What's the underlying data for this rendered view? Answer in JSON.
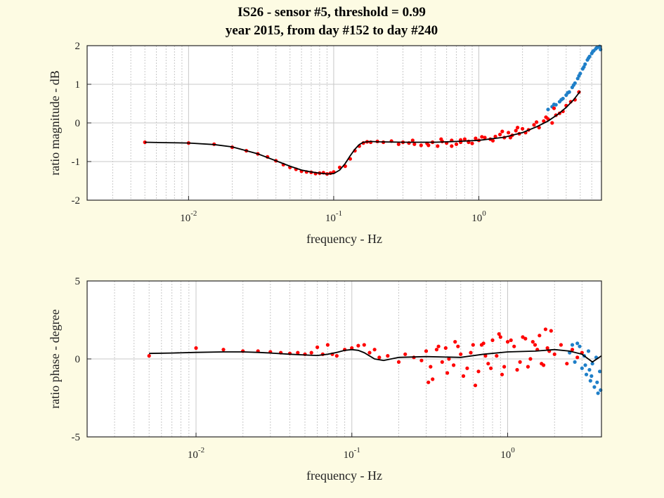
{
  "figure": {
    "title_line1": "IS26 - sensor #5, threshold = 0.99",
    "title_line2": "year 2015, from day #152 to day #240"
  },
  "colors": {
    "background": "#fdfbe3",
    "plot_area": "#ffffff",
    "red_series": "#ff0000",
    "blue_series": "#1f7fc8",
    "fit_line": "#000000",
    "grid": "#c8c8c8"
  },
  "chart_data": [
    {
      "type": "scatter",
      "xscale": "log",
      "xlim": [
        0.002,
        7
      ],
      "ylim": [
        -2,
        2
      ],
      "xlabel": "frequency - Hz",
      "ylabel": "ratio magnitude - dB",
      "xticks": [
        0.01,
        0.1,
        1
      ],
      "xtick_labels": [
        {
          "base": "10",
          "exp": "-2"
        },
        {
          "base": "10",
          "exp": "-1"
        },
        {
          "base": "10",
          "exp": "0"
        }
      ],
      "yticks": [
        -2,
        -1,
        0,
        1,
        2
      ],
      "ytick_labels": [
        "-2",
        "-1",
        "0",
        "1",
        "2"
      ],
      "grid": true,
      "series": [
        {
          "color_key": "blue_series",
          "kind": "points",
          "x": [
            3.0,
            3.2,
            3.4,
            3.6,
            3.8,
            4.0,
            4.2,
            4.4,
            4.6,
            4.8,
            5.0,
            5.2,
            5.4,
            5.6,
            5.8,
            6.0,
            6.2,
            6.4,
            6.6,
            6.8,
            3.3,
            3.7,
            4.1,
            4.5,
            4.9,
            5.3,
            5.7,
            6.1,
            6.5,
            6.9
          ],
          "y": [
            0.35,
            0.42,
            0.47,
            0.55,
            0.63,
            0.72,
            0.8,
            0.92,
            1.03,
            1.15,
            1.28,
            1.4,
            1.52,
            1.63,
            1.72,
            1.8,
            1.87,
            1.92,
            1.96,
            1.98,
            0.48,
            0.6,
            0.78,
            0.98,
            1.22,
            1.45,
            1.68,
            1.85,
            1.95,
            1.9
          ]
        },
        {
          "color_key": "red_series",
          "kind": "points",
          "x": [
            0.005,
            0.01,
            0.015,
            0.02,
            0.025,
            0.03,
            0.035,
            0.04,
            0.045,
            0.05,
            0.055,
            0.06,
            0.065,
            0.07,
            0.075,
            0.08,
            0.085,
            0.09,
            0.095,
            0.1,
            0.11,
            0.12,
            0.13,
            0.14,
            0.15,
            0.16,
            0.17,
            0.18,
            0.2,
            0.22,
            0.25,
            0.28,
            0.3,
            0.33,
            0.36,
            0.4,
            0.44,
            0.48,
            0.52,
            0.56,
            0.6,
            0.65,
            0.7,
            0.75,
            0.8,
            0.85,
            0.9,
            0.95,
            1.0,
            1.1,
            1.2,
            1.3,
            1.4,
            1.5,
            1.6,
            1.7,
            1.8,
            1.9,
            2.0,
            2.2,
            2.4,
            2.6,
            2.8,
            3.0,
            3.2,
            3.4,
            3.6,
            3.8,
            4.0,
            4.3,
            4.6,
            4.9,
            0.35,
            0.45,
            0.55,
            0.65,
            0.75,
            0.85,
            1.05,
            1.25,
            1.45,
            1.65,
            1.85,
            2.1,
            2.5,
            2.9,
            3.3
          ],
          "y": [
            -0.5,
            -0.52,
            -0.55,
            -0.63,
            -0.72,
            -0.8,
            -0.88,
            -0.98,
            -1.08,
            -1.15,
            -1.2,
            -1.25,
            -1.27,
            -1.28,
            -1.31,
            -1.3,
            -1.29,
            -1.32,
            -1.3,
            -1.27,
            -1.15,
            -1.12,
            -0.93,
            -0.72,
            -0.6,
            -0.52,
            -0.49,
            -0.5,
            -0.48,
            -0.5,
            -0.47,
            -0.55,
            -0.5,
            -0.52,
            -0.55,
            -0.58,
            -0.53,
            -0.5,
            -0.6,
            -0.48,
            -0.52,
            -0.45,
            -0.55,
            -0.5,
            -0.42,
            -0.48,
            -0.53,
            -0.4,
            -0.45,
            -0.38,
            -0.42,
            -0.35,
            -0.3,
            -0.38,
            -0.25,
            -0.32,
            -0.2,
            -0.28,
            -0.15,
            -0.18,
            -0.05,
            -0.12,
            0.05,
            0.1,
            0.0,
            0.2,
            0.25,
            0.3,
            0.45,
            0.55,
            0.6,
            0.8,
            -0.45,
            -0.58,
            -0.42,
            -0.6,
            -0.44,
            -0.5,
            -0.36,
            -0.46,
            -0.22,
            -0.38,
            -0.12,
            -0.25,
            0.02,
            0.15,
            0.38
          ]
        },
        {
          "color_key": "fit_line",
          "kind": "line",
          "x": [
            0.005,
            0.007,
            0.01,
            0.015,
            0.02,
            0.03,
            0.04,
            0.05,
            0.06,
            0.07,
            0.08,
            0.09,
            0.1,
            0.11,
            0.12,
            0.13,
            0.14,
            0.15,
            0.16,
            0.18,
            0.2,
            0.3,
            0.5,
            0.7,
            1.0,
            1.5,
            2.0,
            2.5,
            3.0,
            3.5,
            4.0,
            4.5,
            5.0
          ],
          "y": [
            -0.5,
            -0.51,
            -0.52,
            -0.56,
            -0.62,
            -0.8,
            -0.98,
            -1.12,
            -1.22,
            -1.27,
            -1.3,
            -1.32,
            -1.31,
            -1.22,
            -1.05,
            -0.85,
            -0.68,
            -0.56,
            -0.5,
            -0.48,
            -0.49,
            -0.5,
            -0.5,
            -0.48,
            -0.45,
            -0.37,
            -0.25,
            -0.1,
            0.05,
            0.22,
            0.4,
            0.6,
            0.82
          ]
        }
      ]
    },
    {
      "type": "scatter",
      "xscale": "log",
      "xlim": [
        0.002,
        4
      ],
      "ylim": [
        -5,
        5
      ],
      "xlabel": "frequency - Hz",
      "ylabel": "ratio phase - degree",
      "xticks": [
        0.01,
        0.1,
        1
      ],
      "xtick_labels": [
        {
          "base": "10",
          "exp": "-2"
        },
        {
          "base": "10",
          "exp": "-1"
        },
        {
          "base": "10",
          "exp": "0"
        }
      ],
      "yticks": [
        -5,
        0,
        5
      ],
      "ytick_labels": [
        "-5",
        "0",
        "5"
      ],
      "grid": true,
      "series": [
        {
          "color_key": "blue_series",
          "kind": "points",
          "x": [
            2.5,
            2.7,
            2.9,
            3.0,
            3.1,
            3.2,
            3.3,
            3.4,
            3.5,
            3.6,
            3.7,
            3.8,
            3.9,
            2.8,
            3.15,
            3.45,
            3.75,
            3.95,
            2.6,
            3.35
          ],
          "y": [
            0.4,
            -0.2,
            0.8,
            -0.6,
            0.2,
            -1.0,
            0.5,
            -1.4,
            -0.3,
            -1.8,
            0.1,
            -2.2,
            -0.8,
            1.0,
            -0.4,
            -1.1,
            -1.5,
            -2.0,
            0.9,
            -0.7
          ]
        },
        {
          "color_key": "red_series",
          "kind": "points",
          "x": [
            0.005,
            0.01,
            0.015,
            0.02,
            0.025,
            0.03,
            0.035,
            0.04,
            0.045,
            0.05,
            0.055,
            0.06,
            0.065,
            0.07,
            0.075,
            0.08,
            0.09,
            0.1,
            0.11,
            0.12,
            0.13,
            0.14,
            0.15,
            0.17,
            0.2,
            0.22,
            0.25,
            0.28,
            0.3,
            0.32,
            0.35,
            0.38,
            0.4,
            0.42,
            0.45,
            0.48,
            0.5,
            0.55,
            0.6,
            0.65,
            0.7,
            0.75,
            0.8,
            0.85,
            0.9,
            0.95,
            1.0,
            1.1,
            1.2,
            1.3,
            1.4,
            1.5,
            1.6,
            1.7,
            1.8,
            1.9,
            2.0,
            2.2,
            2.4,
            2.6,
            2.8,
            3.0,
            0.31,
            0.33,
            0.36,
            0.41,
            0.46,
            0.52,
            0.58,
            0.62,
            0.68,
            0.72,
            0.78,
            0.88,
            0.92,
            1.05,
            1.15,
            1.25,
            1.35,
            1.45,
            1.55,
            1.65,
            1.75,
            1.85
          ],
          "y": [
            0.2,
            0.7,
            0.6,
            0.5,
            0.5,
            0.45,
            0.4,
            0.35,
            0.4,
            0.3,
            0.4,
            0.75,
            0.3,
            0.9,
            0.3,
            0.2,
            0.6,
            0.7,
            0.85,
            0.9,
            0.4,
            0.6,
            0.1,
            0.2,
            -0.2,
            0.3,
            0.1,
            -0.1,
            0.5,
            -0.5,
            0.6,
            -0.2,
            0.7,
            0.0,
            -0.4,
            0.8,
            0.3,
            -0.6,
            0.9,
            -0.8,
            1.0,
            -0.3,
            1.2,
            0.2,
            1.4,
            -0.5,
            1.1,
            0.8,
            -0.2,
            1.3,
            0.0,
            0.9,
            1.5,
            -0.4,
            0.7,
            1.8,
            0.3,
            0.9,
            -0.3,
            0.6,
            0.1,
            0.4,
            -1.5,
            -1.3,
            0.8,
            -0.9,
            1.1,
            -1.1,
            0.4,
            -1.7,
            0.9,
            0.2,
            -0.6,
            1.6,
            -1.0,
            1.2,
            -0.7,
            1.4,
            -0.5,
            1.1,
            0.6,
            -0.3,
            1.9,
            0.5
          ]
        },
        {
          "color_key": "fit_line",
          "kind": "line",
          "x": [
            0.005,
            0.007,
            0.01,
            0.015,
            0.02,
            0.025,
            0.03,
            0.04,
            0.05,
            0.06,
            0.07,
            0.08,
            0.09,
            0.1,
            0.11,
            0.12,
            0.14,
            0.16,
            0.2,
            0.3,
            0.5,
            0.7,
            1.0,
            1.5,
            2.0,
            2.5,
            3.0,
            3.5,
            4.0
          ],
          "y": [
            0.35,
            0.38,
            0.42,
            0.45,
            0.45,
            0.42,
            0.38,
            0.3,
            0.25,
            0.22,
            0.3,
            0.42,
            0.55,
            0.6,
            0.55,
            0.4,
            0.0,
            -0.1,
            0.1,
            0.15,
            0.1,
            0.3,
            0.45,
            0.5,
            0.6,
            0.5,
            0.3,
            -0.2,
            0.2
          ]
        }
      ]
    }
  ]
}
